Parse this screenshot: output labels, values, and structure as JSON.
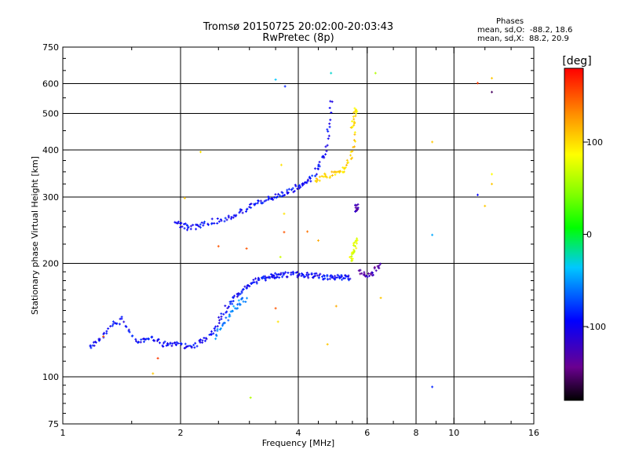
{
  "chart_data": {
    "type": "scatter",
    "title": "Tromsø 20150725 20:02:00-20:03:43",
    "subtitle": "RwPretec (8p)",
    "xlabel": "Frequency [MHz]",
    "ylabel": "Stationary phase Virtual Height [km]",
    "x_scale": "log",
    "y_scale": "log",
    "xlim": [
      1,
      16
    ],
    "ylim": [
      75,
      750
    ],
    "x_ticks": [
      1,
      2,
      4,
      6,
      8,
      10,
      16
    ],
    "x_tick_labels": [
      "1",
      "2",
      "4",
      "6",
      "8",
      "10",
      "16"
    ],
    "y_ticks": [
      75,
      100,
      200,
      300,
      400,
      500,
      600,
      750
    ],
    "y_tick_labels": [
      "75",
      "100",
      "200",
      "300",
      "400",
      "500",
      "600",
      "750"
    ],
    "grid": true,
    "stats": {
      "header": "Phases",
      "line_o": "mean, sd,O:  -88.2, 18.6",
      "line_x": "mean, sd,X:  88.2, 20.9"
    },
    "colorbar": {
      "label": "[deg]",
      "range": [
        -180,
        180
      ],
      "ticks": [
        100,
        0,
        -100
      ],
      "tick_labels": [
        "100",
        "0",
        "-100"
      ],
      "colormap": "rainbow"
    },
    "color_value": "phase [deg]",
    "traces": [
      {
        "x": [
          1.17,
          1.22,
          1.28,
          1.35,
          1.42,
          1.5,
          1.58,
          1.65,
          1.72,
          1.8,
          1.88,
          1.96,
          2.05,
          2.15,
          2.25,
          2.35,
          2.45,
          2.55,
          2.65,
          2.75,
          2.85,
          2.95,
          3.05,
          3.15,
          3.25,
          3.35,
          3.45,
          3.55,
          3.65,
          3.8,
          3.95,
          4.1,
          4.25,
          4.4,
          4.55,
          4.7,
          4.85,
          5.0,
          5.15,
          5.3,
          5.45
        ],
        "y": [
          120,
          124,
          130,
          138,
          142,
          128,
          123,
          128,
          126,
          122,
          123,
          122,
          121,
          121,
          123,
          127,
          135,
          145,
          155,
          163,
          168,
          173,
          177,
          180,
          182,
          184,
          185,
          186,
          186,
          187,
          187,
          186,
          186,
          185,
          185,
          184,
          184,
          184,
          183,
          183,
          182
        ],
        "phase": -110
      },
      {
        "x": [
          2.45,
          2.55,
          2.65,
          2.75,
          2.85,
          2.95
        ],
        "y": [
          128,
          135,
          145,
          152,
          158,
          162
        ],
        "phase": -70
      },
      {
        "x": [
          1.95,
          2.02,
          2.1,
          2.2,
          2.3,
          2.45,
          2.6,
          2.75,
          2.9,
          3.05,
          3.2,
          3.35,
          3.5,
          3.65,
          3.8,
          3.95,
          4.1,
          4.25,
          4.4,
          4.55,
          4.7,
          4.8,
          4.87
        ],
        "y": [
          255,
          252,
          248,
          250,
          255,
          259,
          263,
          268,
          276,
          285,
          290,
          296,
          300,
          306,
          312,
          318,
          324,
          333,
          346,
          368,
          400,
          460,
          560
        ],
        "phase": -108
      },
      {
        "x": [
          4.4,
          4.6,
          4.8,
          5.0,
          5.2,
          5.35,
          5.5,
          5.6
        ],
        "y": [
          330,
          338,
          343,
          346,
          352,
          365,
          395,
          450
        ],
        "phase": 105
      },
      {
        "x": [
          5.5,
          5.55,
          5.6,
          5.62
        ],
        "y": [
          460,
          480,
          500,
          520
        ],
        "phase": 100
      },
      {
        "x": [
          5.45,
          5.5,
          5.55,
          5.6,
          5.62
        ],
        "y": [
          205,
          210,
          218,
          226,
          230
        ],
        "phase": 80
      },
      {
        "x": [
          5.7,
          5.9,
          6.1,
          6.3,
          6.5
        ],
        "y": [
          190,
          188,
          186,
          192,
          198
        ],
        "phase": -140
      },
      {
        "x": [
          5.6,
          5.63,
          5.66
        ],
        "y": [
          275,
          280,
          285
        ],
        "phase": -140
      }
    ],
    "points": [
      {
        "x": 1.27,
        "y": 128,
        "phase": 150
      },
      {
        "x": 1.75,
        "y": 112,
        "phase": 160
      },
      {
        "x": 1.7,
        "y": 102,
        "phase": 110
      },
      {
        "x": 2.25,
        "y": 395,
        "phase": 100
      },
      {
        "x": 2.05,
        "y": 298,
        "phase": 110
      },
      {
        "x": 2.5,
        "y": 222,
        "phase": 150
      },
      {
        "x": 2.95,
        "y": 219,
        "phase": 150
      },
      {
        "x": 3.02,
        "y": 88,
        "phase": 60
      },
      {
        "x": 3.5,
        "y": 615,
        "phase": -50
      },
      {
        "x": 3.7,
        "y": 590,
        "phase": -100
      },
      {
        "x": 3.62,
        "y": 365,
        "phase": 100
      },
      {
        "x": 3.68,
        "y": 271,
        "phase": 100
      },
      {
        "x": 3.68,
        "y": 242,
        "phase": 150
      },
      {
        "x": 3.6,
        "y": 208,
        "phase": 70
      },
      {
        "x": 3.5,
        "y": 152,
        "phase": 150
      },
      {
        "x": 3.55,
        "y": 140,
        "phase": 100
      },
      {
        "x": 4.85,
        "y": 640,
        "phase": -40
      },
      {
        "x": 4.75,
        "y": 122,
        "phase": 110
      },
      {
        "x": 4.22,
        "y": 243,
        "phase": 140
      },
      {
        "x": 4.5,
        "y": 230,
        "phase": 120
      },
      {
        "x": 5.0,
        "y": 154,
        "phase": 120
      },
      {
        "x": 6.3,
        "y": 640,
        "phase": 60
      },
      {
        "x": 6.5,
        "y": 162,
        "phase": 110
      },
      {
        "x": 8.8,
        "y": 420,
        "phase": 110
      },
      {
        "x": 8.8,
        "y": 238,
        "phase": -60
      },
      {
        "x": 8.8,
        "y": 94,
        "phase": -100
      },
      {
        "x": 11.5,
        "y": 602,
        "phase": 160
      },
      {
        "x": 12.5,
        "y": 570,
        "phase": -160
      },
      {
        "x": 12.5,
        "y": 620,
        "phase": 110
      },
      {
        "x": 11.5,
        "y": 304,
        "phase": -110
      },
      {
        "x": 12.0,
        "y": 284,
        "phase": 110
      },
      {
        "x": 12.5,
        "y": 325,
        "phase": 110
      },
      {
        "x": 12.5,
        "y": 345,
        "phase": 90
      }
    ]
  }
}
